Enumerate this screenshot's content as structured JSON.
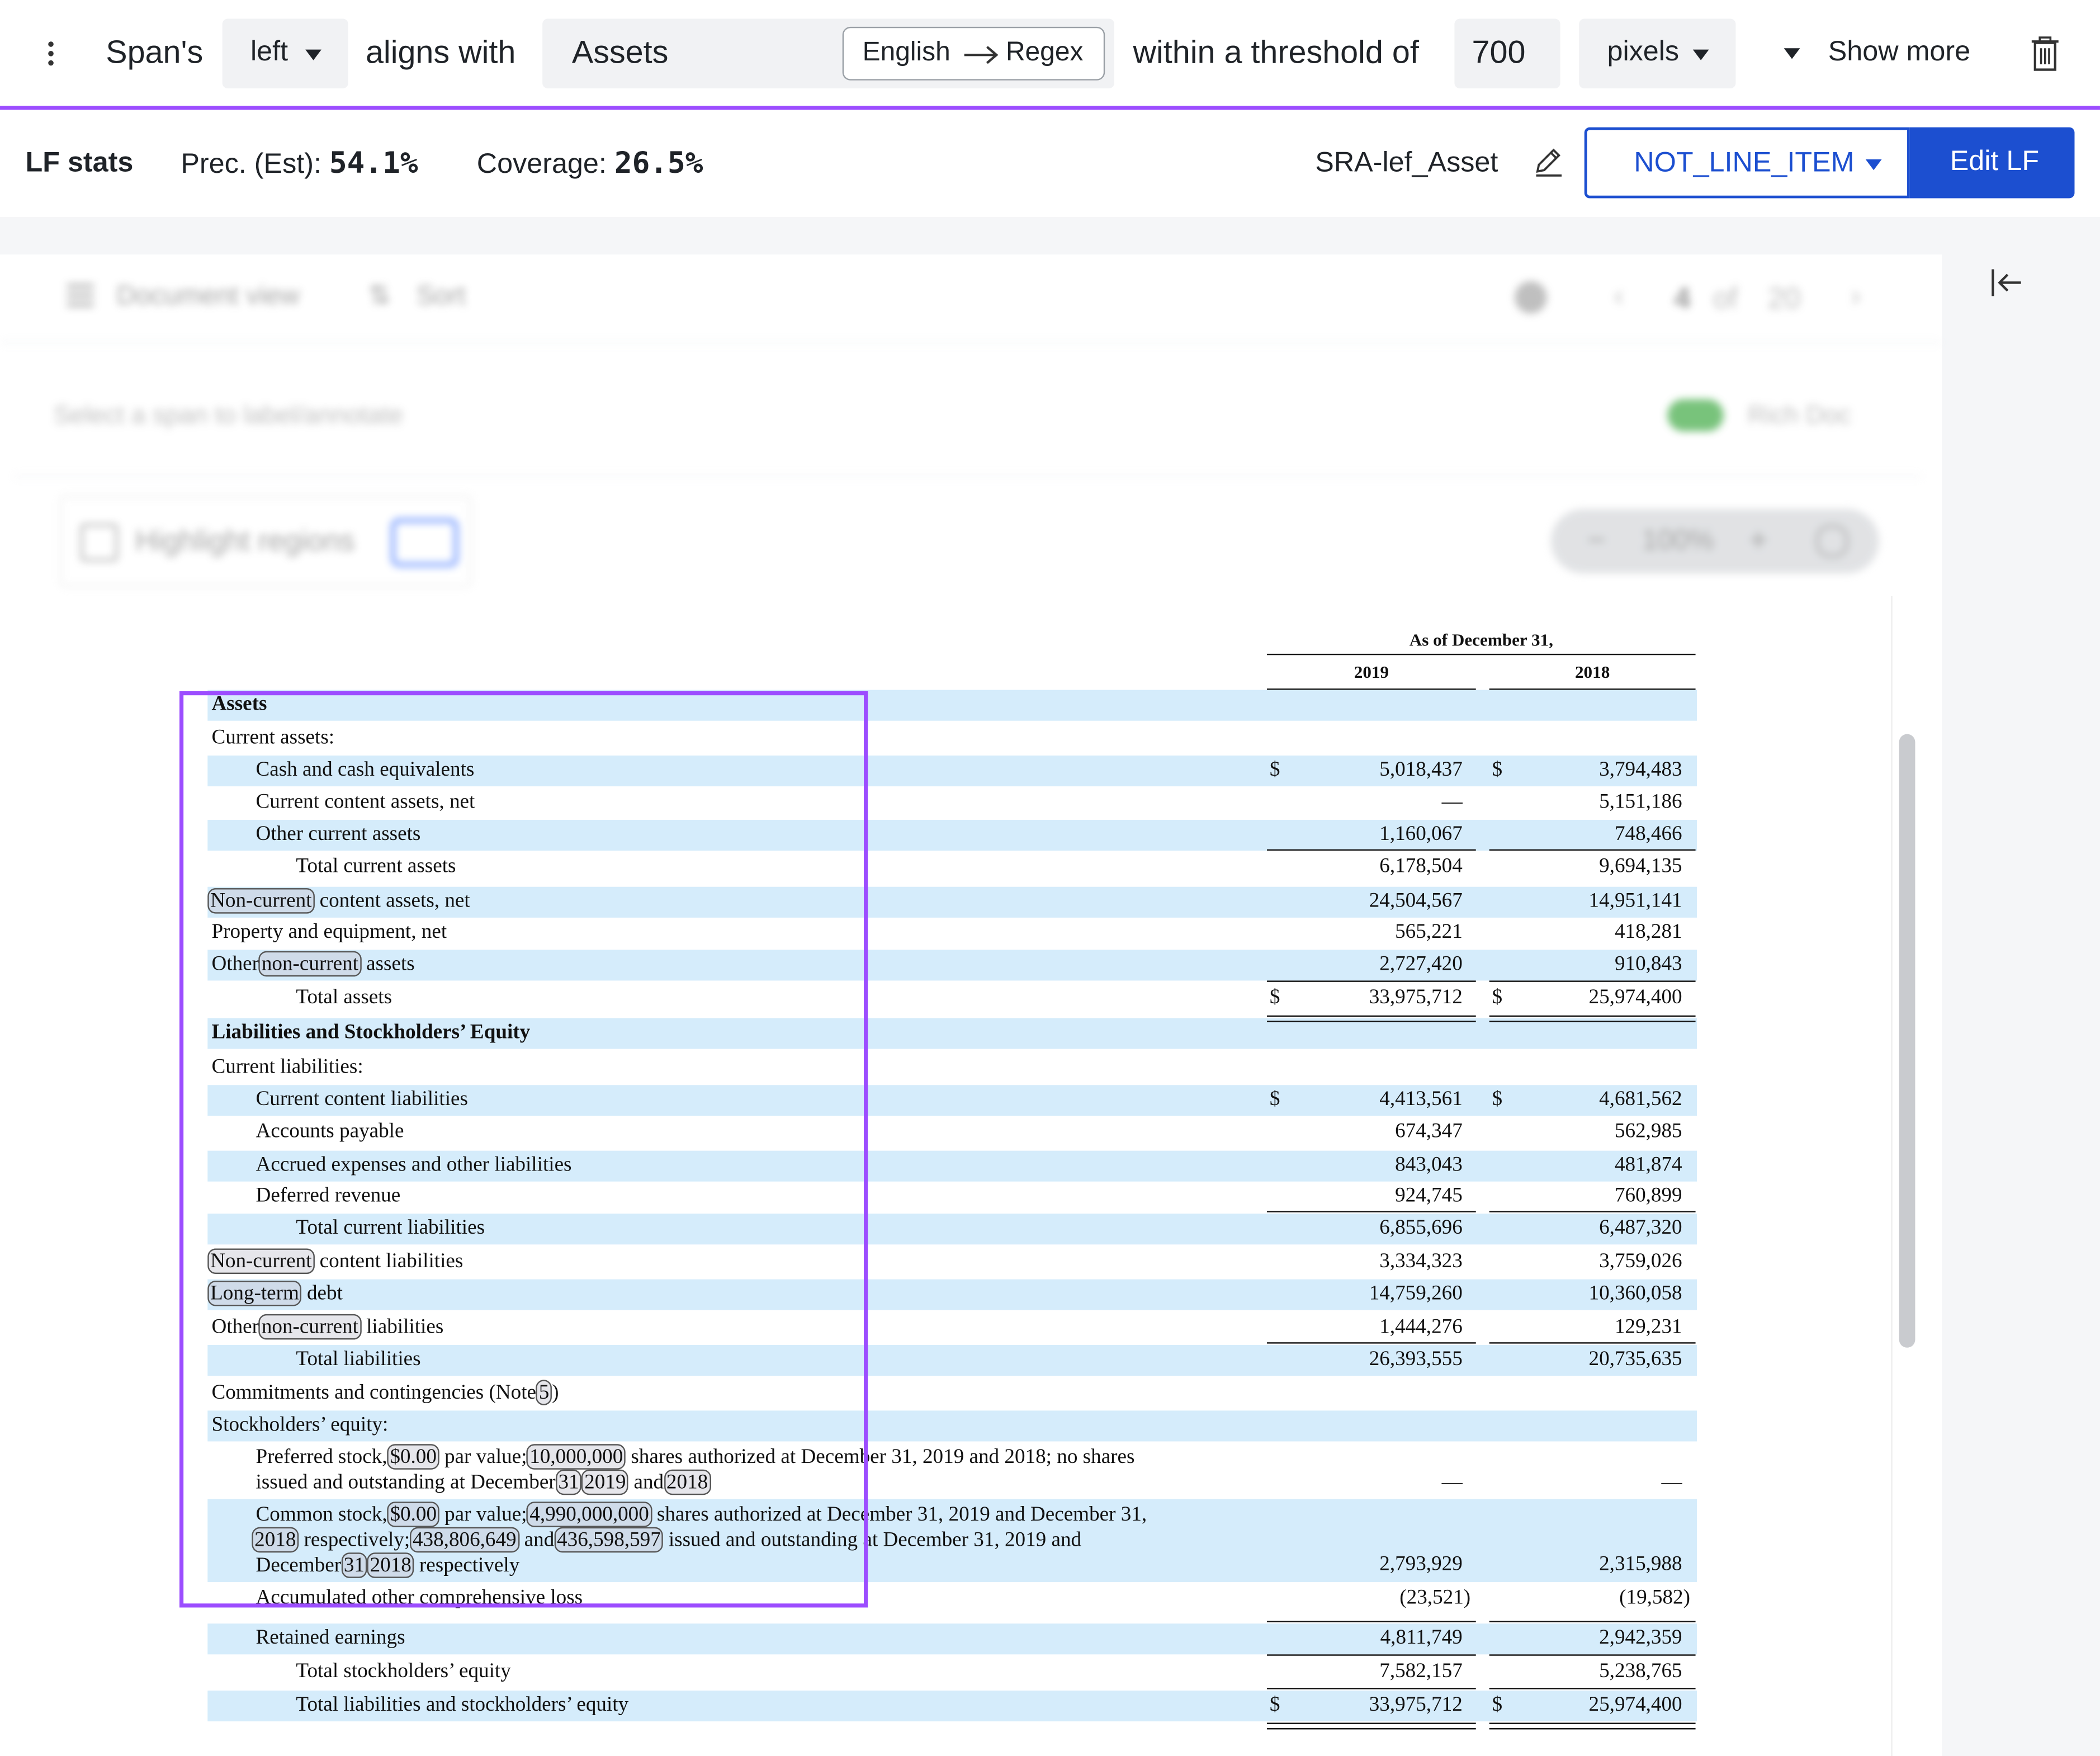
{
  "rule": {
    "subject": "Span's",
    "side": "left",
    "relation": "aligns with",
    "target": "Assets",
    "translate_from": "English",
    "translate_to": "Regex",
    "threshold_prefix": "within a threshold of",
    "threshold_value": "700",
    "unit": "pixels",
    "show_more": "Show more"
  },
  "stats": {
    "title": "LF stats",
    "precision_label": "Prec. (Est):",
    "precision_value": "54.1%",
    "coverage_label": "Coverage:",
    "coverage_value": "26.5%",
    "lf_name": "SRA-lef_Asset",
    "label_select": "NOT_LINE_ITEM",
    "edit_button": "Edit LF"
  },
  "viewer": {
    "doc_view": "Document view",
    "sort": "Sort",
    "page_current": "4",
    "page_of": "of",
    "page_total": "20",
    "select_hint": "Select a span to label/annotate",
    "rich_doc": "Rich Doc",
    "highlight_regions": "Highlight regions",
    "zoom": "100%"
  },
  "statement": {
    "header_title": "As of December 31,",
    "col1": "2019",
    "col2": "2018",
    "currency": "$",
    "dash": "—",
    "rows": [
      {
        "label": "Assets",
        "v1": "",
        "v2": ""
      },
      {
        "label": "Current assets:",
        "v1": "",
        "v2": ""
      },
      {
        "label": "Cash and cash equivalents",
        "v1": "5,018,437",
        "v2": "3,794,483"
      },
      {
        "label": "Current content assets, net",
        "v1": "—",
        "v2": "5,151,186"
      },
      {
        "label": "Other current assets",
        "v1": "1,160,067",
        "v2": "748,466"
      },
      {
        "label": "Total current assets",
        "v1": "6,178,504",
        "v2": "9,694,135"
      },
      {
        "label_token": "Non-current",
        "label_rest": " content assets, net",
        "v1": "24,504,567",
        "v2": "14,951,141"
      },
      {
        "label": "Property and equipment, net",
        "v1": "565,221",
        "v2": "418,281"
      },
      {
        "label_pre": "Other",
        "label_token": "non-current",
        "label_rest": " assets",
        "v1": "2,727,420",
        "v2": "910,843"
      },
      {
        "label": "Total assets",
        "v1": "33,975,712",
        "v2": "25,974,400"
      },
      {
        "label": "Liabilities and Stockholders’ Equity",
        "v1": "",
        "v2": ""
      },
      {
        "label": "Current liabilities:",
        "v1": "",
        "v2": ""
      },
      {
        "label": "Current content liabilities",
        "v1": "4,413,561",
        "v2": "4,681,562"
      },
      {
        "label": "Accounts payable",
        "v1": "674,347",
        "v2": "562,985"
      },
      {
        "label": "Accrued expenses and other liabilities",
        "v1": "843,043",
        "v2": "481,874"
      },
      {
        "label": "Deferred revenue",
        "v1": "924,745",
        "v2": "760,899"
      },
      {
        "label": "Total current liabilities",
        "v1": "6,855,696",
        "v2": "6,487,320"
      },
      {
        "label_token": "Non-current",
        "label_rest": " content liabilities",
        "v1": "3,334,323",
        "v2": "3,759,026"
      },
      {
        "label_token": "Long-term",
        "label_rest": " debt",
        "v1": "14,759,260",
        "v2": "10,360,058"
      },
      {
        "label_pre": "Other",
        "label_token": "non-current",
        "label_rest": " liabilities",
        "v1": "1,444,276",
        "v2": "129,231"
      },
      {
        "label": "Total liabilities",
        "v1": "26,393,555",
        "v2": "20,735,635"
      },
      {
        "label_pre": "Commitments and contingencies (Note",
        "label_token": "5",
        "label_rest": ")",
        "v1": "",
        "v2": ""
      },
      {
        "label": "Stockholders’ equity:",
        "v1": "",
        "v2": ""
      },
      {
        "label": "Accumulated other comprehensive loss",
        "v1": "(23,521)",
        "v2": "(19,582)"
      },
      {
        "label": "Retained earnings",
        "v1": "4,811,749",
        "v2": "2,942,359"
      },
      {
        "label": "Total stockholders’ equity",
        "v1": "7,582,157",
        "v2": "5,238,765"
      },
      {
        "label": "Total liabilities and stockholders’ equity",
        "v1": "33,975,712",
        "v2": "25,974,400"
      }
    ],
    "preferred": {
      "a": "Preferred stock,",
      "t1": "$0.00",
      "b": " par value;",
      "t2": "10,000,000",
      "c": " shares authorized at December 31, 2019 and 2018; no shares",
      "d": "issued and outstanding at December",
      "t3": "31",
      "t4": "2019",
      "e": " and",
      "t5": "2018",
      "v1": "—",
      "v2": "—"
    },
    "common": {
      "a": "Common stock,",
      "t1": "$0.00",
      "b": " par value;",
      "t2": "4,990,000,000",
      "c": " shares authorized at December 31, 2019 and December 31,",
      "t3": "2018",
      "d": " respectively;",
      "t4": "438,806,649",
      "e": " and",
      "t5": "436,598,597",
      "f": " issued and outstanding at December 31, 2019 and",
      "g": "December",
      "t6": "31",
      "t7": "2018",
      "h": " respectively",
      "v1": "2,793,929",
      "v2": "2,315,988"
    }
  }
}
